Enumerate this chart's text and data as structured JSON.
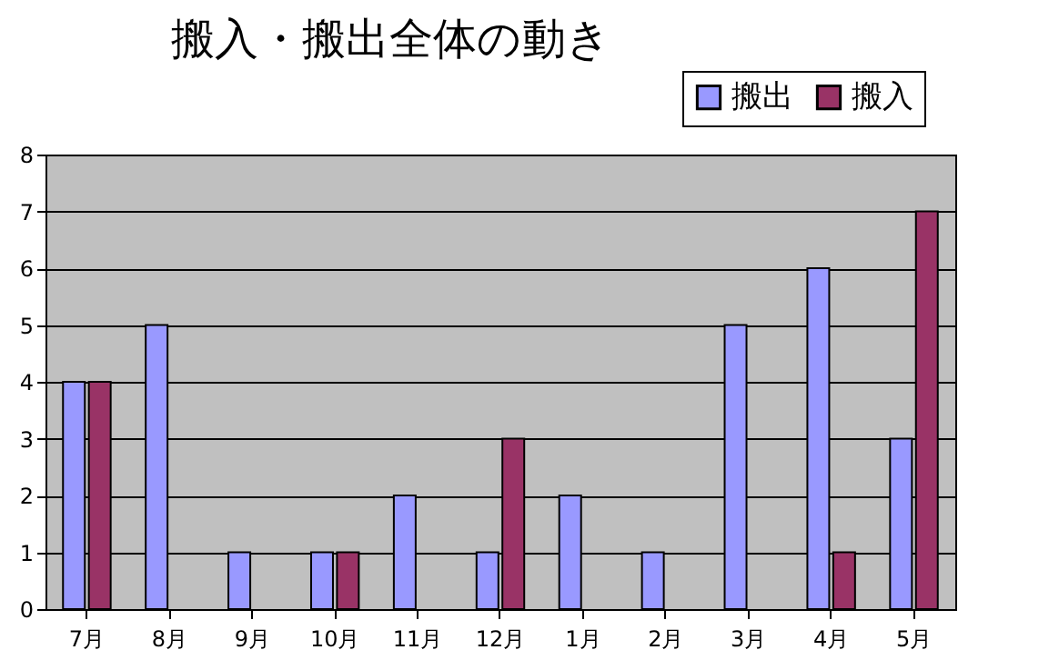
{
  "chart_data": {
    "type": "bar",
    "title": "搬入・搬出全体の動き",
    "categories": [
      "7月",
      "8月",
      "9月",
      "10月",
      "11月",
      "12月",
      "1月",
      "2月",
      "3月",
      "4月",
      "5月"
    ],
    "series": [
      {
        "name": "搬出",
        "color": "#9999ff",
        "values": [
          4,
          5,
          1,
          1,
          2,
          1,
          2,
          1,
          5,
          6,
          3
        ]
      },
      {
        "name": "搬入",
        "color": "#993366",
        "values": [
          4,
          null,
          null,
          1,
          null,
          3,
          null,
          null,
          null,
          1,
          7
        ]
      }
    ],
    "ylim": [
      0,
      8
    ],
    "yticks": [
      0,
      1,
      2,
      3,
      4,
      5,
      6,
      7,
      8
    ],
    "grid": "y",
    "legend": "top right"
  }
}
